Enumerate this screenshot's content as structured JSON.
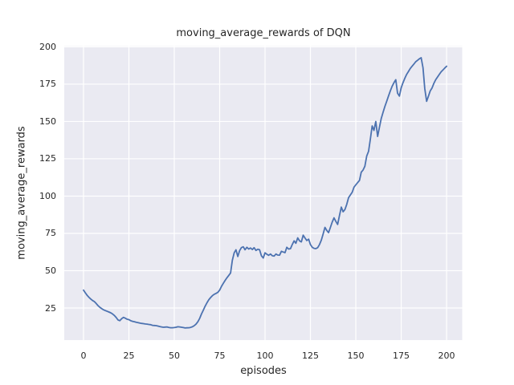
{
  "chart_data": {
    "type": "line",
    "title": "moving_average_rewards of DQN",
    "xlabel": "episodes",
    "ylabel": "moving_average_rewards",
    "xticks": [
      0,
      25,
      50,
      75,
      100,
      125,
      150,
      175,
      200
    ],
    "yticks": [
      25,
      50,
      75,
      100,
      125,
      150,
      175,
      200
    ],
    "xlim": [
      -10.6,
      208.6
    ],
    "ylim": [
      3.5,
      200.5
    ],
    "grid": true,
    "legend": false,
    "plot_bg_color": "#EAEAF2",
    "grid_color": "#FFFFFF",
    "figure_bg_color": "#FFFFFF",
    "text_color": "#262626",
    "series": [
      {
        "name": "moving_average_rewards",
        "color": "#4C72B0",
        "x_start": 0,
        "x_step": 1,
        "y": [
          37,
          35.2,
          33.5,
          32.2,
          31,
          30,
          29.3,
          28,
          26.6,
          25.5,
          24.6,
          23.8,
          23.3,
          22.8,
          22.3,
          21.8,
          21,
          20,
          18.6,
          17,
          16.5,
          17.8,
          18.7,
          18.2,
          17.5,
          17.2,
          16.5,
          16.1,
          15.8,
          15.5,
          15.2,
          14.9,
          14.7,
          14.5,
          14.3,
          14.2,
          14,
          13.8,
          13.4,
          13.3,
          13.2,
          12.9,
          12.6,
          12.3,
          12.1,
          12.2,
          12.3,
          12,
          11.8,
          11.8,
          11.9,
          12.1,
          12.4,
          12.3,
          12.1,
          11.9,
          11.6,
          11.7,
          11.8,
          12,
          12.4,
          13.2,
          14.2,
          15.8,
          18,
          21,
          23.6,
          26.2,
          28.5,
          30.5,
          32,
          33.3,
          34.2,
          34.8,
          35.5,
          37,
          39.5,
          41.5,
          43.5,
          45.2,
          46.8,
          48.5,
          57,
          62,
          64,
          59.5,
          63.5,
          65.5,
          66,
          64,
          65.7,
          64.5,
          65.2,
          64.2,
          65.4,
          63.6,
          64.4,
          64,
          60,
          58.5,
          62,
          61,
          60.3,
          61.2,
          60,
          59.8,
          61.2,
          60.5,
          60.4,
          63,
          62.5,
          62.1,
          65.7,
          64.5,
          64.8,
          67.5,
          70,
          68.4,
          72,
          70,
          69.3,
          73.8,
          72,
          70.2,
          71.1,
          67.5,
          65.7,
          65,
          64.8,
          65.5,
          67.5,
          70.5,
          74.5,
          79,
          77,
          75.5,
          79,
          82.5,
          85.4,
          83,
          81,
          87,
          92.6,
          89.5,
          91,
          94.4,
          98.9,
          100.8,
          102.5,
          106,
          107.5,
          109,
          110.5,
          116,
          117.5,
          120,
          126.8,
          130,
          138,
          147,
          144,
          150,
          140,
          146,
          152,
          156,
          160,
          163.5,
          167,
          170.5,
          173.5,
          176,
          178,
          169,
          167,
          172.5,
          176,
          179,
          181.5,
          183.5,
          185.5,
          187,
          188.5,
          190,
          191,
          192,
          192.7,
          186,
          172,
          163.5,
          167,
          170.5,
          172.5,
          175.5,
          178,
          179.8,
          181.5,
          183.3,
          184.5,
          185.8,
          187
        ]
      }
    ]
  }
}
